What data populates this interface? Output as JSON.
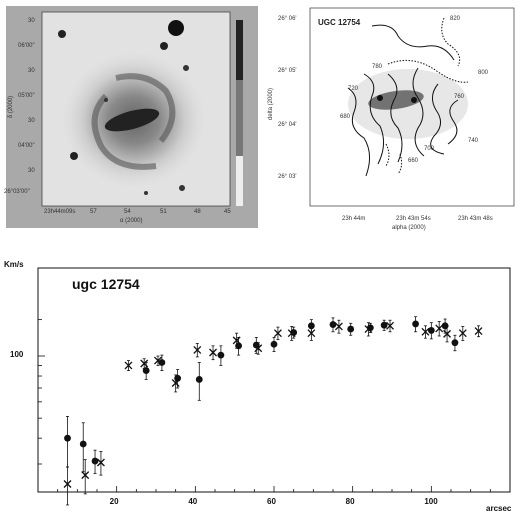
{
  "left_panel": {
    "ra_ticks": [
      "23h44m09s",
      "57",
      "54",
      "51",
      "48",
      "45"
    ],
    "dec_ticks": [
      "30",
      "06'00\"",
      "30",
      "05'00\"",
      "30",
      "04'00\"",
      "30",
      "26°03'00\""
    ],
    "xlabel": "α (2000)",
    "ylabel": "δ (2000)"
  },
  "right_panel": {
    "object_name": "UGC 12754",
    "ra_ticks": [
      "23h 44m",
      "23h 43m 54s",
      "23h 43m 48s"
    ],
    "dec_ticks": [
      "26° 06'",
      "26° 05'",
      "26° 04'",
      "26° 03'"
    ],
    "xlabel": "alpha (2000)",
    "ylabel": "delta (2000)",
    "contour_labels": [
      "820",
      "780",
      "800",
      "720",
      "760",
      "680",
      "740",
      "700",
      "660"
    ]
  },
  "chart_data": {
    "type": "scatter",
    "title": "ugc 12754",
    "ylabel": "Km/s",
    "xlabel": "arcsec",
    "x_ticks": [
      "20",
      "40",
      "60",
      "80",
      "100"
    ],
    "y_ticks": [
      "100"
    ],
    "xlim": [
      0,
      120
    ],
    "ylim": [
      0,
      160
    ],
    "y_scale": "log",
    "series": [
      {
        "marker": "filled-circle",
        "points": [
          {
            "x": 7.5,
            "y": 40,
            "err": 11
          },
          {
            "x": 11.5,
            "y": 37.5,
            "err": 10
          },
          {
            "x": 14.5,
            "y": 31,
            "err": 4
          },
          {
            "x": 27.5,
            "y": 85,
            "err": 8
          },
          {
            "x": 31.5,
            "y": 93,
            "err": 8
          },
          {
            "x": 35.5,
            "y": 78,
            "err": 8
          },
          {
            "x": 41,
            "y": 77,
            "err": 16
          },
          {
            "x": 46.5,
            "y": 101,
            "err": 11
          },
          {
            "x": 51,
            "y": 112,
            "err": 11
          },
          {
            "x": 55.5,
            "y": 113,
            "err": 10
          },
          {
            "x": 60,
            "y": 114,
            "err": 9
          },
          {
            "x": 65,
            "y": 130,
            "err": 8
          },
          {
            "x": 69.5,
            "y": 140,
            "err": 10
          },
          {
            "x": 75,
            "y": 142,
            "err": 11
          },
          {
            "x": 79.5,
            "y": 135,
            "err": 9
          },
          {
            "x": 84.5,
            "y": 137,
            "err": 7
          },
          {
            "x": 88,
            "y": 141,
            "err": 8
          },
          {
            "x": 96,
            "y": 143,
            "err": 12
          },
          {
            "x": 100,
            "y": 133,
            "err": 12
          },
          {
            "x": 103.5,
            "y": 140,
            "err": 11
          },
          {
            "x": 106,
            "y": 116,
            "err": 10
          }
        ]
      },
      {
        "marker": "cross",
        "points": [
          {
            "x": 7.5,
            "y": 24,
            "err": 5
          },
          {
            "x": 12,
            "y": 26.5,
            "err": 5
          },
          {
            "x": 16,
            "y": 30.5,
            "err": 4
          },
          {
            "x": 23,
            "y": 90,
            "err": 5
          },
          {
            "x": 27,
            "y": 92,
            "err": 5
          },
          {
            "x": 30.5,
            "y": 95,
            "err": 5
          },
          {
            "x": 35,
            "y": 74,
            "err": 7
          },
          {
            "x": 40.5,
            "y": 107,
            "err": 8
          },
          {
            "x": 44.5,
            "y": 104,
            "err": 8
          },
          {
            "x": 50.5,
            "y": 119,
            "err": 10
          },
          {
            "x": 56,
            "y": 109,
            "err": 7
          },
          {
            "x": 61,
            "y": 129,
            "err": 9
          },
          {
            "x": 64.5,
            "y": 129,
            "err": 10
          },
          {
            "x": 69.5,
            "y": 129,
            "err": 10
          },
          {
            "x": 76.5,
            "y": 139,
            "err": 10
          },
          {
            "x": 84,
            "y": 135,
            "err": 10
          },
          {
            "x": 89.5,
            "y": 140,
            "err": 9
          },
          {
            "x": 98.5,
            "y": 131,
            "err": 9
          },
          {
            "x": 102,
            "y": 136,
            "err": 11
          },
          {
            "x": 104,
            "y": 128,
            "err": 11
          },
          {
            "x": 108,
            "y": 129,
            "err": 10
          },
          {
            "x": 112,
            "y": 132,
            "err": 8
          }
        ]
      }
    ]
  }
}
